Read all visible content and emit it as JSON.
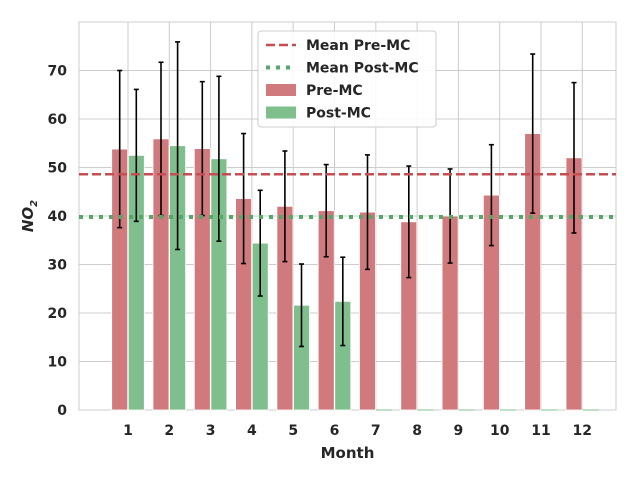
{
  "chart_data": {
    "type": "bar",
    "xlabel": "Month",
    "ylabel_base": "NO",
    "ylabel_sub": "2",
    "ylim": [
      0,
      80
    ],
    "yticks": [
      0,
      10,
      20,
      30,
      40,
      50,
      60,
      70
    ],
    "categories": [
      "1",
      "2",
      "3",
      "4",
      "5",
      "6",
      "7",
      "8",
      "9",
      "10",
      "11",
      "12"
    ],
    "grid": true,
    "legend_placement": "top-center",
    "series": [
      {
        "name": "Pre-MC",
        "color": "#d07a7e",
        "values": [
          53.8,
          55.9,
          53.9,
          43.6,
          42.0,
          41.1,
          40.8,
          38.8,
          40.0,
          44.3,
          57.0,
          52.0
        ],
        "err": [
          16.2,
          15.8,
          13.8,
          13.4,
          11.4,
          9.5,
          11.8,
          11.5,
          9.7,
          10.4,
          16.4,
          15.5
        ]
      },
      {
        "name": "Post-MC",
        "color": "#7fbf8e",
        "values": [
          52.5,
          54.5,
          51.8,
          34.4,
          21.6,
          22.4,
          null,
          null,
          null,
          null,
          null,
          null
        ],
        "err": [
          13.6,
          21.4,
          17.0,
          10.9,
          8.5,
          9.1,
          null,
          null,
          null,
          null,
          null,
          null
        ]
      }
    ],
    "mean_lines": [
      {
        "name": "Mean Pre-MC",
        "value": 48.6,
        "color": "#c44e52",
        "style": "dashed"
      },
      {
        "name": "Mean Post-MC",
        "value": 39.8,
        "color": "#55a868",
        "style": "dotted"
      }
    ]
  }
}
